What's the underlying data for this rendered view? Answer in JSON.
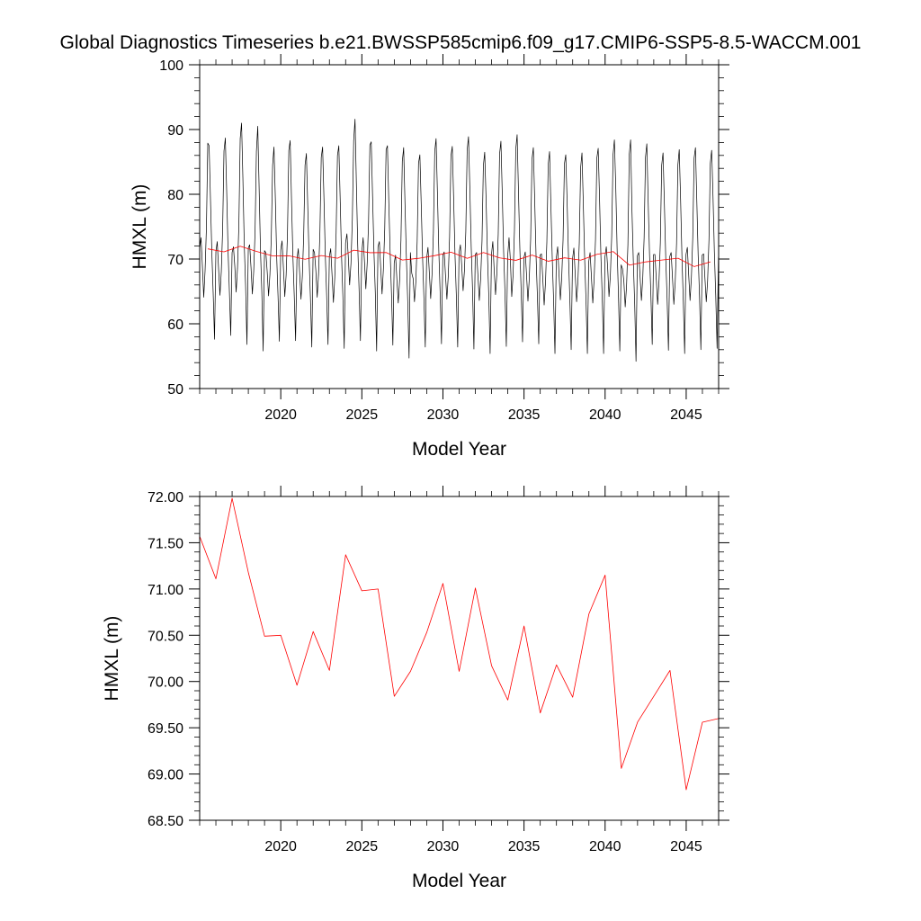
{
  "title": "Global Diagnostics Timeseries b.e21.BWSSP585cmip6.f09_g17.CMIP6-SSP5-8.5-WACCM.001",
  "colors": {
    "monthly": "#000000",
    "annual": "#ff0000",
    "frame": "#000000"
  },
  "chart_data": [
    {
      "type": "line",
      "xlabel": "Model Year",
      "ylabel": "HMXL (m)",
      "xlim": [
        2015,
        2047
      ],
      "ylim": [
        50,
        100
      ],
      "xticks": [
        2020,
        2025,
        2030,
        2035,
        2040,
        2045
      ],
      "xtick_labels": [
        "2020",
        "2025",
        "2030",
        "2035",
        "2040",
        "2045"
      ],
      "yticks": [
        50,
        60,
        70,
        80,
        90,
        100
      ],
      "ytick_labels": [
        "50",
        "60",
        "70",
        "80",
        "90",
        "100"
      ],
      "grid": false,
      "series": [
        {
          "color": "#000000",
          "x_start": 2015.0,
          "x_step": 0.0833,
          "values": [
            71.6,
            73.3,
            69.0,
            64.1,
            68.2,
            74.9,
            87.9,
            87.5,
            79.2,
            71.0,
            64.7,
            57.6,
            71.1,
            72.7,
            68.5,
            64.4,
            68.0,
            74.5,
            86.7,
            88.7,
            80.4,
            71.4,
            65.0,
            58.2,
            71.0,
            71.9,
            68.9,
            64.9,
            68.6,
            75.1,
            88.6,
            91.0,
            82.4,
            72.3,
            65.8,
            56.8,
            71.7,
            72.2,
            68.7,
            64.6,
            68.1,
            74.2,
            86.6,
            90.5,
            81.1,
            71.4,
            65.0,
            55.8,
            71.3,
            71.0,
            68.0,
            64.3,
            67.6,
            73.2,
            84.5,
            87.3,
            79.5,
            70.4,
            64.3,
            57.3,
            71.4,
            72.8,
            68.6,
            64.2,
            67.5,
            73.9,
            86.8,
            88.3,
            79.0,
            70.5,
            64.4,
            57.4,
            69.9,
            71.6,
            67.9,
            63.8,
            67.3,
            73.6,
            84.5,
            86.3,
            78.2,
            70.1,
            64.0,
            56.4,
            71.5,
            71.0,
            68.2,
            64.1,
            67.7,
            74.1,
            85.7,
            87.3,
            79.4,
            70.6,
            64.3,
            56.8,
            70.4,
            71.6,
            67.5,
            63.3,
            67.1,
            73.9,
            86.0,
            87.5,
            79.3,
            70.6,
            64.3,
            56.2,
            72.5,
            73.9,
            70.4,
            66.0,
            69.3,
            76.1,
            88.3,
            91.6,
            81.7,
            72.1,
            65.3,
            57.4,
            71.0,
            73.3,
            69.6,
            65.4,
            69.3,
            75.6,
            87.6,
            88.1,
            79.6,
            71.2,
            64.9,
            55.8,
            71.9,
            72.7,
            68.7,
            64.6,
            68.4,
            74.7,
            86.9,
            87.5,
            78.8,
            71.0,
            64.6,
            56.7,
            69.4,
            70.6,
            66.8,
            63.2,
            66.7,
            72.9,
            85.1,
            87.2,
            78.5,
            70.3,
            63.5,
            54.7,
            71.0,
            67.8,
            67.0,
            63.4,
            66.4,
            72.7,
            84.8,
            86.1,
            78.4,
            70.3,
            64.0,
            56.4,
            70.1,
            71.8,
            67.9,
            63.9,
            67.6,
            74.0,
            86.6,
            88.6,
            80.2,
            71.4,
            64.8,
            56.9,
            70.6,
            71.1,
            67.4,
            63.8,
            67.3,
            73.4,
            85.9,
            87.4,
            79.3,
            70.7,
            64.3,
            56.4,
            70.9,
            72.2,
            68.9,
            65.1,
            68.2,
            74.2,
            86.8,
            88.9,
            80.9,
            71.9,
            65.2,
            56.1,
            70.7,
            71.0,
            67.4,
            63.6,
            67.0,
            72.8,
            84.4,
            86.5,
            79.4,
            70.8,
            64.3,
            55.4,
            70.7,
            72.7,
            68.3,
            64.5,
            67.8,
            73.8,
            86.2,
            88.2,
            80.0,
            71.2,
            64.9,
            56.5,
            70.5,
            73.3,
            69.8,
            64.2,
            67.5,
            74.4,
            87.0,
            89.2,
            80.4,
            71.7,
            64.9,
            57.2,
            70.2,
            71.1,
            67.4,
            63.5,
            67.0,
            73.1,
            85.4,
            87.2,
            79.1,
            70.5,
            64.2,
            56.9,
            70.6,
            70.8,
            66.9,
            62.9,
            66.4,
            72.6,
            84.6,
            86.6,
            78.2,
            70.1,
            63.6,
            55.4,
            70.2,
            71.9,
            67.7,
            63.7,
            67.1,
            73.0,
            84.7,
            86.1,
            78.9,
            70.5,
            63.9,
            56.0,
            70.0,
            71.7,
            67.6,
            63.4,
            66.6,
            72.5,
            84.1,
            86.4,
            78.4,
            69.9,
            63.5,
            55.4,
            69.6,
            71.0,
            67.2,
            63.2,
            66.9,
            73.0,
            85.6,
            87.1,
            79.4,
            70.5,
            64.0,
            55.4,
            70.3,
            71.9,
            68.7,
            64.2,
            67.4,
            73.5,
            86.1,
            88.4,
            81.2,
            71.6,
            64.4,
            55.8,
            69.1,
            68.5,
            66.6,
            62.6,
            65.8,
            72.2,
            86.2,
            88.4,
            77.5,
            69.7,
            63.2,
            54.2,
            70.5,
            71.0,
            67.3,
            63.6,
            67.1,
            73.3,
            85.7,
            87.8,
            78.8,
            70.7,
            64.5,
            56.8,
            70.7,
            70.7,
            66.9,
            63.0,
            66.5,
            72.5,
            84.5,
            86.4,
            78.5,
            70.2,
            64.0,
            55.9,
            70.4,
            71.0,
            67.1,
            63.0,
            66.4,
            72.4,
            84.6,
            86.9,
            79.2,
            70.3,
            63.5,
            55.4,
            70.7,
            71.8,
            67.5,
            63.6,
            67.2,
            73.3,
            85.6,
            87.2,
            79.0,
            70.6,
            64.3,
            56.0,
            70.6,
            70.8,
            67.1,
            63.4,
            66.6,
            73.0,
            84.8,
            86.8,
            79.6,
            71.1,
            64.4,
            56.2,
            70.3,
            71.2,
            67.4,
            63.3,
            66.8,
            73.0,
            85.1,
            88.0,
            80.5,
            71.5,
            65.1,
            56.3,
            70.9,
            71.8,
            68.1,
            64.0,
            67.6,
            74.4,
            87.1,
            89.8,
            81.5,
            71.8,
            64.9,
            56.8,
            70.2,
            69.3,
            65.9,
            62.0,
            65.6,
            71.3,
            82.9,
            85.3,
            77.6,
            69.2,
            62.7,
            54.6,
            67.5,
            68.3,
            65.8,
            62.8,
            66.7,
            72.6,
            85.1,
            85.3,
            77.2,
            69.4,
            63.3,
            55.6,
            68.9,
            70.6,
            66.6,
            62.4,
            66.1,
            72.6,
            84.8,
            86.6,
            78.3,
            69.8,
            63.2,
            55.7,
            70.0,
            71.0,
            67.1,
            63.0,
            66.6,
            72.7,
            84.7,
            87.1,
            79.0,
            70.4,
            64.0,
            56.0,
            69.8,
            70.7,
            66.8,
            62.7,
            66.3,
            72.6,
            85.2,
            87.3,
            79.2,
            70.8,
            64.3,
            56.2,
            69.9,
            70.4,
            66.5,
            62.4,
            65.8,
            71.9,
            83.5,
            85.4,
            77.3,
            69.3,
            63.0,
            55.4,
            69.0,
            69.8,
            65.8,
            61.7,
            65.5,
            71.8,
            83.7,
            85.7,
            77.4,
            69.3,
            63.1,
            55.4,
            69.6,
            70.4,
            66.5,
            62.8,
            66.5,
            72.4,
            84.6,
            86.1,
            78.2,
            70.0
          ]
        },
        {
          "color": "#ff0000",
          "x": [
            2015.5,
            2016.5,
            2017.5,
            2018.5,
            2019.5,
            2020.5,
            2021.5,
            2022.5,
            2023.5,
            2024.5,
            2025.5,
            2026.5,
            2027.5,
            2028.5,
            2029.5,
            2030.5,
            2031.5,
            2032.5,
            2033.5,
            2034.5,
            2035.5,
            2036.5,
            2037.5,
            2038.5,
            2039.5,
            2040.5,
            2041.5,
            2042.5,
            2043.5,
            2044.5,
            2045.5,
            2046.5
          ],
          "values": [
            71.57,
            71.11,
            71.98,
            71.18,
            70.49,
            70.5,
            69.96,
            70.54,
            70.12,
            71.37,
            70.98,
            71.0,
            69.84,
            70.11,
            70.53,
            71.06,
            70.11,
            71.01,
            70.17,
            69.8,
            70.6,
            69.66,
            70.18,
            69.83,
            70.73,
            71.15,
            69.06,
            69.56,
            69.84,
            70.12,
            68.83,
            69.56
          ]
        }
      ]
    },
    {
      "type": "line",
      "xlabel": "Model Year",
      "ylabel": "HMXL (m)",
      "xlim": [
        2015,
        2047
      ],
      "ylim": [
        68.5,
        72.0
      ],
      "xticks": [
        2020,
        2025,
        2030,
        2035,
        2040,
        2045
      ],
      "xtick_labels": [
        "2020",
        "2025",
        "2030",
        "2035",
        "2040",
        "2045"
      ],
      "yticks": [
        68.5,
        69.0,
        69.5,
        70.0,
        70.5,
        71.0,
        71.5,
        72.0
      ],
      "ytick_labels": [
        "68.50",
        "69.00",
        "69.50",
        "70.00",
        "70.50",
        "71.00",
        "71.50",
        "72.00"
      ],
      "grid": false,
      "series": [
        {
          "color": "#ff0000",
          "x": [
            2015.0,
            2016.0,
            2017.0,
            2018.0,
            2019.0,
            2020.0,
            2021.0,
            2022.0,
            2023.0,
            2024.0,
            2025.0,
            2026.0,
            2027.0,
            2028.0,
            2029.0,
            2030.0,
            2031.0,
            2032.0,
            2033.0,
            2034.0,
            2035.0,
            2036.0,
            2037.0,
            2038.0,
            2039.0,
            2040.0,
            2041.0,
            2042.0,
            2043.0,
            2044.0,
            2045.0,
            2046.0,
            2047.0
          ],
          "values": [
            71.57,
            71.11,
            71.98,
            71.18,
            70.49,
            70.5,
            69.96,
            70.54,
            70.12,
            71.37,
            70.98,
            71.0,
            69.84,
            70.11,
            70.53,
            71.06,
            70.11,
            71.01,
            70.17,
            69.8,
            70.6,
            69.66,
            70.18,
            69.83,
            70.73,
            71.15,
            69.06,
            69.56,
            69.84,
            70.12,
            68.83,
            69.56,
            69.6
          ]
        }
      ]
    }
  ]
}
